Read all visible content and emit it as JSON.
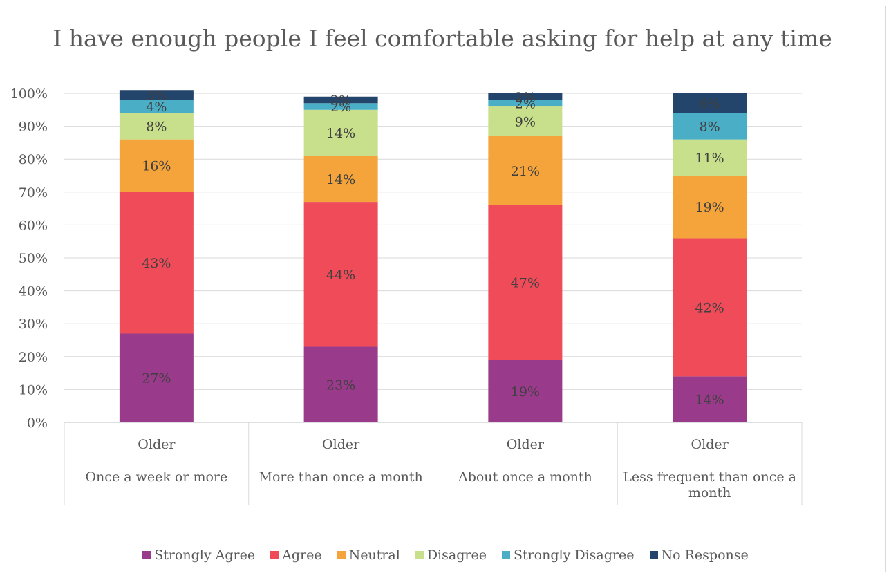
{
  "chart_data": {
    "type": "bar",
    "stacked": true,
    "percent": true,
    "title": "I have enough people I feel comfortable asking for help at any time",
    "categories": [
      [
        "Older",
        "Once a week or more"
      ],
      [
        "Older",
        "More than once a month"
      ],
      [
        "Older",
        "About once a month"
      ],
      [
        "Older",
        "Less frequent than once a month"
      ]
    ],
    "ylim": [
      0,
      100
    ],
    "yticks": [
      "0%",
      "10%",
      "20%",
      "30%",
      "40%",
      "50%",
      "60%",
      "70%",
      "80%",
      "90%",
      "100%"
    ],
    "grid": true,
    "legend_position": "bottom",
    "series": [
      {
        "name": "Strongly Agree",
        "color": "#993a8b",
        "values": [
          27,
          23,
          19,
          14
        ],
        "labels": [
          "27%",
          "23%",
          "19%",
          "14%"
        ]
      },
      {
        "name": "Agree",
        "color": "#ef4b59",
        "values": [
          43,
          44,
          47,
          42
        ],
        "labels": [
          "43%",
          "44%",
          "47%",
          "42%"
        ]
      },
      {
        "name": "Neutral",
        "color": "#f4a43b",
        "values": [
          16,
          14,
          21,
          19
        ],
        "labels": [
          "16%",
          "14%",
          "21%",
          "19%"
        ]
      },
      {
        "name": "Disagree",
        "color": "#c8df8b",
        "values": [
          8,
          14,
          9,
          11
        ],
        "labels": [
          "8%",
          "14%",
          "9%",
          "11%"
        ]
      },
      {
        "name": "Strongly Disagree",
        "color": "#4aafc6",
        "values": [
          4,
          2,
          2,
          8
        ],
        "labels": [
          "4%",
          "2%",
          "2%",
          "8%"
        ]
      },
      {
        "name": "No Response",
        "color": "#23446b",
        "values": [
          3,
          2,
          2,
          6
        ],
        "labels": [
          "3%",
          "2%",
          "2%",
          "6%"
        ]
      }
    ]
  }
}
